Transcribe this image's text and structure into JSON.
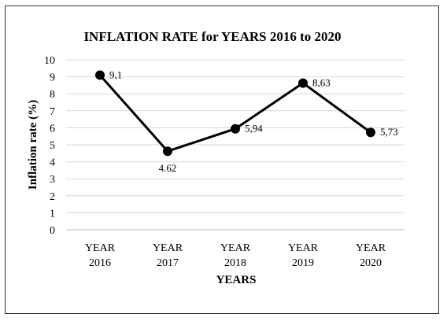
{
  "chart_data": {
    "type": "line",
    "title": "INFLATION RATE for YEARS 2016 to 2020",
    "xlabel": "YEARS",
    "ylabel": "Inflation rate (%)",
    "ylim": [
      0,
      10
    ],
    "yticks": [
      "0",
      "1",
      "2",
      "3",
      "4",
      "5",
      "6",
      "7",
      "8",
      "9",
      "10"
    ],
    "categories": [
      {
        "line1": "YEAR",
        "line2": "2016"
      },
      {
        "line1": "YEAR",
        "line2": "2017"
      },
      {
        "line1": "YEAR",
        "line2": "2018"
      },
      {
        "line1": "YEAR",
        "line2": "2019"
      },
      {
        "line1": "YEAR",
        "line2": "2020"
      }
    ],
    "values": [
      9.1,
      4.62,
      5.94,
      8.63,
      5.73
    ],
    "data_labels": [
      "9,1",
      "4.62",
      "5,94",
      "8,63",
      "5,73"
    ],
    "grid": true,
    "legend": "none",
    "line_color": "#000000"
  }
}
